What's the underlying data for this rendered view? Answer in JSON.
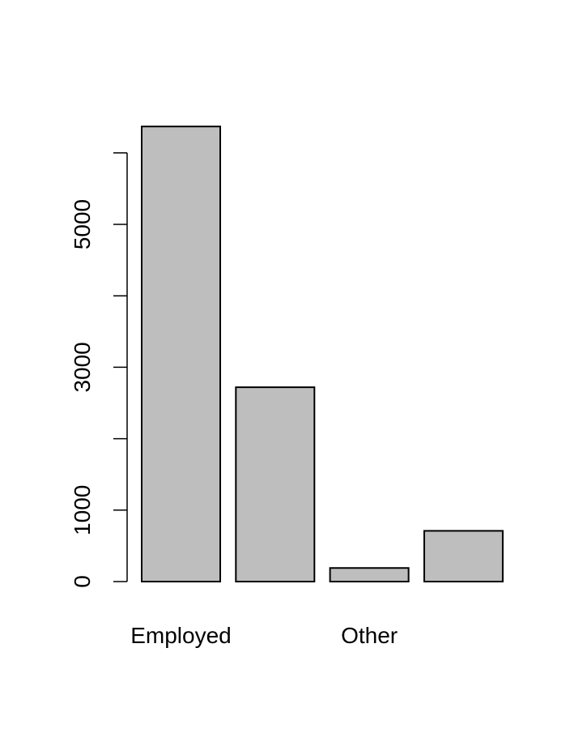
{
  "chart_data": {
    "type": "bar",
    "categories": [
      "Employed",
      "",
      "Other",
      ""
    ],
    "values": [
      6370,
      2720,
      190,
      710
    ],
    "title": "",
    "xlabel": "",
    "ylabel": "",
    "ylim": [
      0,
      6000
    ],
    "y_ticks": [
      0,
      1000,
      2000,
      3000,
      4000,
      5000,
      6000
    ],
    "y_tick_labels": [
      "0",
      "1000",
      "",
      "3000",
      "",
      "5000",
      ""
    ],
    "bar_color": "#bebebe",
    "grid": false
  }
}
